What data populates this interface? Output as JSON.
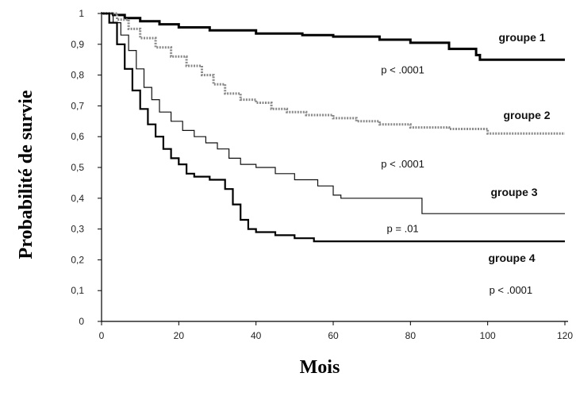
{
  "chart_data": {
    "type": "line",
    "xlabel": "Mois",
    "ylabel": "Probabilité de survie",
    "xlim": [
      0,
      120
    ],
    "ylim": [
      0,
      1
    ],
    "xticks": [
      0,
      20,
      40,
      60,
      80,
      100,
      120
    ],
    "yticks": [
      "0",
      "0,1",
      "0,2",
      "0,3",
      "0,4",
      "0,5",
      "0,6",
      "0,7",
      "0,8",
      "0,9",
      "1"
    ],
    "grid": false,
    "series": [
      {
        "name": "groupe 1",
        "color": "#000000",
        "style": "thick",
        "points": [
          [
            0,
            1
          ],
          [
            3,
            0.995
          ],
          [
            6,
            0.985
          ],
          [
            10,
            0.975
          ],
          [
            15,
            0.965
          ],
          [
            20,
            0.955
          ],
          [
            28,
            0.945
          ],
          [
            40,
            0.935
          ],
          [
            52,
            0.93
          ],
          [
            60,
            0.925
          ],
          [
            72,
            0.915
          ],
          [
            80,
            0.905
          ],
          [
            90,
            0.885
          ],
          [
            97,
            0.865
          ],
          [
            98,
            0.85
          ],
          [
            120,
            0.85
          ]
        ]
      },
      {
        "name": "groupe 2",
        "color": "#8a8a8a",
        "style": "dotted",
        "points": [
          [
            0,
            1
          ],
          [
            4,
            0.98
          ],
          [
            7,
            0.95
          ],
          [
            10,
            0.92
          ],
          [
            14,
            0.89
          ],
          [
            18,
            0.86
          ],
          [
            22,
            0.83
          ],
          [
            26,
            0.8
          ],
          [
            29,
            0.77
          ],
          [
            32,
            0.74
          ],
          [
            36,
            0.72
          ],
          [
            40,
            0.71
          ],
          [
            44,
            0.69
          ],
          [
            48,
            0.68
          ],
          [
            53,
            0.67
          ],
          [
            60,
            0.66
          ],
          [
            66,
            0.65
          ],
          [
            72,
            0.64
          ],
          [
            80,
            0.63
          ],
          [
            90,
            0.625
          ],
          [
            100,
            0.61
          ],
          [
            120,
            0.61
          ]
        ]
      },
      {
        "name": "groupe 3",
        "color": "#111111",
        "style": "thin",
        "points": [
          [
            0,
            1
          ],
          [
            3,
            0.97
          ],
          [
            5,
            0.93
          ],
          [
            7,
            0.88
          ],
          [
            9,
            0.82
          ],
          [
            11,
            0.76
          ],
          [
            13,
            0.72
          ],
          [
            15,
            0.68
          ],
          [
            18,
            0.65
          ],
          [
            21,
            0.62
          ],
          [
            24,
            0.6
          ],
          [
            27,
            0.58
          ],
          [
            30,
            0.56
          ],
          [
            33,
            0.53
          ],
          [
            36,
            0.51
          ],
          [
            40,
            0.5
          ],
          [
            45,
            0.48
          ],
          [
            50,
            0.46
          ],
          [
            56,
            0.44
          ],
          [
            60,
            0.41
          ],
          [
            62,
            0.4
          ],
          [
            70,
            0.4
          ],
          [
            82,
            0.4
          ],
          [
            83,
            0.35
          ],
          [
            120,
            0.35
          ]
        ]
      },
      {
        "name": "groupe 4",
        "color": "#000000",
        "style": "medium",
        "points": [
          [
            0,
            1
          ],
          [
            2,
            0.97
          ],
          [
            4,
            0.9
          ],
          [
            6,
            0.82
          ],
          [
            8,
            0.75
          ],
          [
            10,
            0.69
          ],
          [
            12,
            0.64
          ],
          [
            14,
            0.6
          ],
          [
            16,
            0.56
          ],
          [
            18,
            0.53
          ],
          [
            20,
            0.51
          ],
          [
            22,
            0.48
          ],
          [
            24,
            0.47
          ],
          [
            28,
            0.46
          ],
          [
            32,
            0.43
          ],
          [
            34,
            0.38
          ],
          [
            36,
            0.33
          ],
          [
            38,
            0.3
          ],
          [
            40,
            0.29
          ],
          [
            45,
            0.28
          ],
          [
            50,
            0.27
          ],
          [
            55,
            0.26
          ],
          [
            60,
            0.26
          ],
          [
            120,
            0.26
          ]
        ]
      }
    ],
    "annotations": [
      {
        "text": "p < .0001",
        "x": 78,
        "y": 0.805
      },
      {
        "text": "p < .0001",
        "x": 78,
        "y": 0.5
      },
      {
        "text": "p = .01",
        "x": 78,
        "y": 0.29
      },
      {
        "text": "p < .0001",
        "x": 106,
        "y": 0.09
      }
    ]
  }
}
